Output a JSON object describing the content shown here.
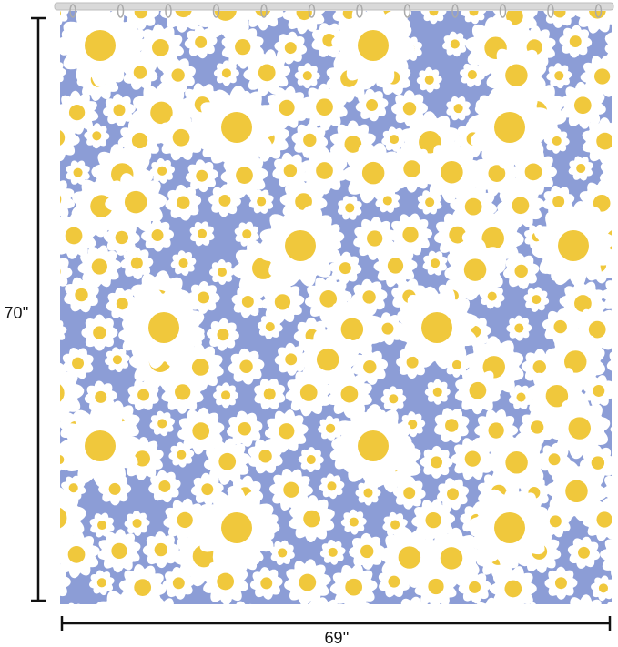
{
  "dimensions": {
    "height": "70''",
    "width": "69''"
  }
}
